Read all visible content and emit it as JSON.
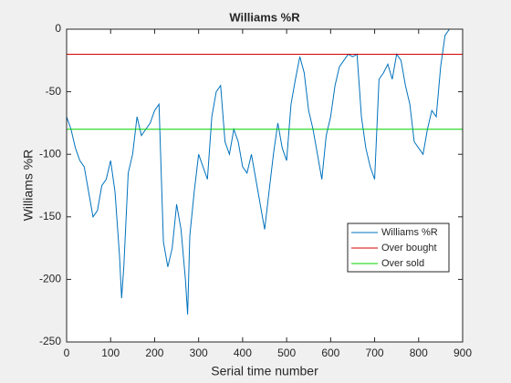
{
  "chart_data": {
    "type": "line",
    "title": "Williams %R",
    "xlabel": "Serial time number",
    "ylabel": "Williams %R",
    "xlim": [
      0,
      900
    ],
    "xticks": [
      0,
      100,
      200,
      300,
      400,
      500,
      600,
      700,
      800,
      900
    ],
    "ylim": [
      -250,
      0
    ],
    "yticks": [
      -250,
      -200,
      -150,
      -100,
      -50,
      0
    ],
    "legend": "southeast",
    "series": [
      {
        "name": "Williams %R",
        "color": "#0072bd",
        "x": [
          0,
          10,
          20,
          30,
          40,
          50,
          60,
          70,
          80,
          90,
          100,
          110,
          120,
          125,
          130,
          140,
          150,
          160,
          170,
          180,
          190,
          200,
          210,
          220,
          230,
          240,
          250,
          260,
          270,
          275,
          280,
          290,
          300,
          310,
          320,
          330,
          340,
          350,
          360,
          370,
          380,
          390,
          400,
          410,
          420,
          430,
          440,
          450,
          460,
          470,
          480,
          490,
          500,
          510,
          520,
          530,
          540,
          550,
          560,
          570,
          580,
          590,
          600,
          610,
          620,
          630,
          640,
          650,
          660,
          670,
          680,
          690,
          700,
          710,
          720,
          730,
          740,
          750,
          760,
          770,
          780,
          790,
          800,
          810,
          820,
          830,
          840,
          850,
          860,
          870
        ],
        "values": [
          -70,
          -80,
          -95,
          -105,
          -110,
          -130,
          -150,
          -145,
          -125,
          -120,
          -105,
          -130,
          -180,
          -215,
          -190,
          -115,
          -100,
          -70,
          -85,
          -80,
          -75,
          -65,
          -60,
          -170,
          -190,
          -175,
          -140,
          -160,
          -200,
          -228,
          -165,
          -130,
          -100,
          -110,
          -120,
          -70,
          -50,
          -45,
          -90,
          -100,
          -80,
          -90,
          -110,
          -115,
          -100,
          -120,
          -140,
          -160,
          -130,
          -100,
          -75,
          -95,
          -105,
          -60,
          -40,
          -22,
          -35,
          -65,
          -80,
          -100,
          -120,
          -85,
          -70,
          -45,
          -30,
          -25,
          -20,
          -22,
          -20,
          -70,
          -95,
          -110,
          -120,
          -40,
          -35,
          -28,
          -40,
          -20,
          -25,
          -45,
          -60,
          -90,
          -95,
          -100,
          -80,
          -65,
          -70,
          -30,
          -5,
          0
        ]
      },
      {
        "name": "Over bought",
        "color": "#d40000",
        "x": [
          0,
          900
        ],
        "values": [
          -20,
          -20
        ]
      },
      {
        "name": "Over sold",
        "color": "#00d400",
        "x": [
          0,
          900
        ],
        "values": [
          -80,
          -80
        ]
      }
    ]
  }
}
